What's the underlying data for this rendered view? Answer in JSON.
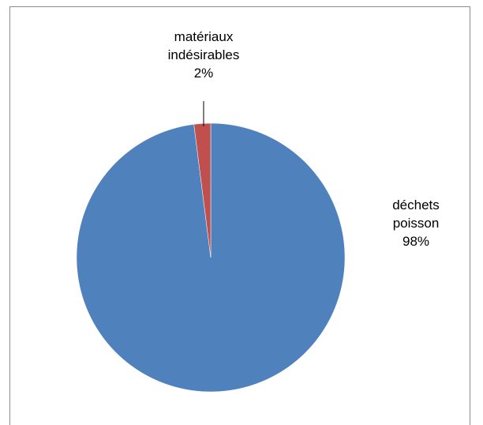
{
  "chart_data": {
    "type": "pie",
    "categories": [
      "déchets poisson",
      "matériaux indésirables"
    ],
    "values": [
      98,
      2
    ],
    "value_labels": [
      "98%",
      "2%"
    ],
    "colors": [
      "#4f81bd",
      "#c0504d"
    ]
  }
}
